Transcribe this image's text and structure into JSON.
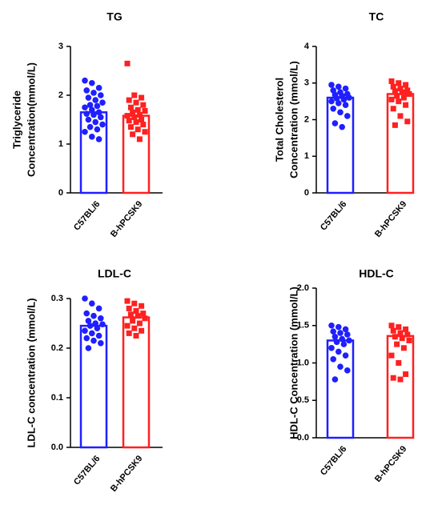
{
  "chart_data": [
    {
      "type": "bar",
      "title": "TG",
      "ylabel": [
        "Triglyceride",
        "Concentration(mmol/L)"
      ],
      "categories": [
        "C57BL/6",
        "B-hPCSK9"
      ],
      "colors": [
        "#1f1fff",
        "#ff2020"
      ],
      "markers": [
        "circle",
        "square"
      ],
      "values": [
        1.65,
        1.58
      ],
      "points": [
        [
          2.3,
          2.25,
          2.15,
          2.1,
          2.05,
          2.0,
          1.95,
          1.9,
          1.85,
          1.8,
          1.78,
          1.75,
          1.7,
          1.65,
          1.62,
          1.6,
          1.55,
          1.5,
          1.45,
          1.4,
          1.35,
          1.3,
          1.25,
          1.15,
          1.1
        ],
        [
          2.65,
          2.0,
          1.95,
          1.9,
          1.85,
          1.8,
          1.75,
          1.7,
          1.68,
          1.65,
          1.6,
          1.58,
          1.55,
          1.5,
          1.48,
          1.45,
          1.4,
          1.35,
          1.3,
          1.25,
          1.2,
          1.1
        ]
      ],
      "ylim": [
        0,
        3
      ],
      "yticks": [
        0,
        1,
        2,
        3
      ]
    },
    {
      "type": "bar",
      "title": "TC",
      "ylabel": [
        "Total Cholesterol",
        "Concentration (mmol/L)"
      ],
      "categories": [
        "C57BL/6",
        "B-hPCSK9"
      ],
      "colors": [
        "#1f1fff",
        "#ff2020"
      ],
      "markers": [
        "circle",
        "square"
      ],
      "values": [
        2.6,
        2.7
      ],
      "points": [
        [
          2.95,
          2.9,
          2.85,
          2.8,
          2.75,
          2.7,
          2.68,
          2.65,
          2.6,
          2.58,
          2.55,
          2.5,
          2.45,
          2.4,
          2.3,
          2.2,
          2.1,
          1.9,
          1.8
        ],
        [
          3.05,
          3.0,
          2.95,
          2.9,
          2.85,
          2.8,
          2.78,
          2.75,
          2.7,
          2.65,
          2.6,
          2.55,
          2.5,
          2.4,
          2.3,
          2.1,
          1.95,
          1.85
        ]
      ],
      "ylim": [
        0,
        4
      ],
      "yticks": [
        0,
        1,
        2,
        3,
        4
      ]
    },
    {
      "type": "bar",
      "title": "LDL-C",
      "ylabel": [
        "LDL-C concentration (mmol/L)"
      ],
      "categories": [
        "C57BL/6",
        "B-hPCSK9"
      ],
      "colors": [
        "#1f1fff",
        "#ff2020"
      ],
      "markers": [
        "circle",
        "square"
      ],
      "values": [
        0.245,
        0.262
      ],
      "points": [
        [
          0.3,
          0.29,
          0.28,
          0.27,
          0.265,
          0.26,
          0.255,
          0.25,
          0.248,
          0.245,
          0.24,
          0.235,
          0.23,
          0.225,
          0.22,
          0.215,
          0.21,
          0.2
        ],
        [
          0.295,
          0.29,
          0.285,
          0.28,
          0.275,
          0.27,
          0.268,
          0.265,
          0.26,
          0.255,
          0.25,
          0.245,
          0.24,
          0.235,
          0.23,
          0.225
        ]
      ],
      "ylim": [
        0,
        0.3
      ],
      "yticks": [
        {
          "value": 0,
          "label": "0.0"
        },
        0.1,
        0.2,
        0.3
      ]
    },
    {
      "type": "bar",
      "title": "HDL-C",
      "ylabel": [
        "HDL-C Concentration (mmol/L)"
      ],
      "categories": [
        "C57BL/6",
        "B-hPCSK9"
      ],
      "colors": [
        "#1f1fff",
        "#ff2020"
      ],
      "markers": [
        "circle",
        "square"
      ],
      "values": [
        1.3,
        1.36
      ],
      "points": [
        [
          1.5,
          1.48,
          1.45,
          1.42,
          1.4,
          1.38,
          1.35,
          1.32,
          1.3,
          1.28,
          1.25,
          1.2,
          1.15,
          1.1,
          1.05,
          0.95,
          0.9,
          0.78
        ],
        [
          1.5,
          1.48,
          1.45,
          1.43,
          1.4,
          1.38,
          1.35,
          1.33,
          1.3,
          1.25,
          1.2,
          1.1,
          1.0,
          0.85,
          0.8,
          0.78
        ]
      ],
      "ylim": [
        0,
        2
      ],
      "yticks": [
        {
          "value": 0,
          "label": "0.0"
        },
        0.5,
        {
          "value": 1,
          "label": "1.0"
        },
        1.5,
        {
          "value": 2,
          "label": "2.0"
        }
      ]
    }
  ]
}
